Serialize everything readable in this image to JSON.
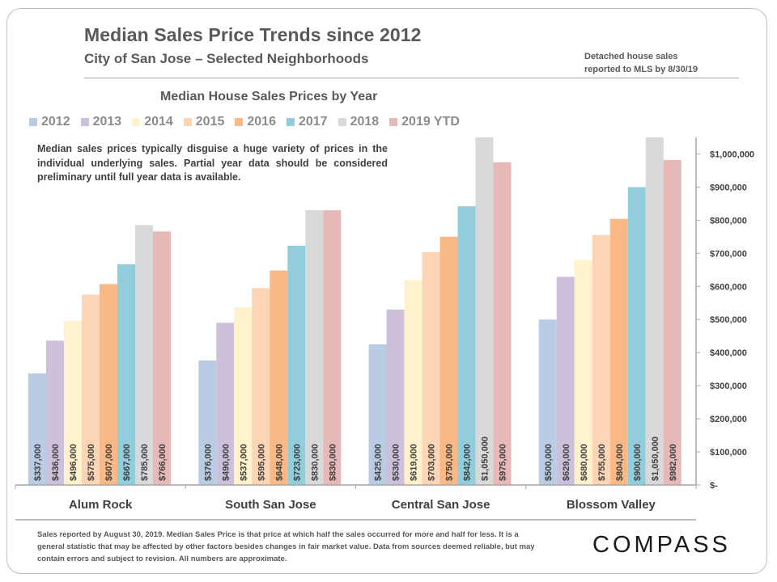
{
  "header": {
    "title": "Median Sales Price Trends since 2012",
    "subtitle": "City of San Jose – Selected Neighborhoods",
    "note_line1": "Detached house sales",
    "note_line2": "reported to MLS by 8/30/19"
  },
  "annotation": "Median sales prices typically disguise a huge variety of prices in the individual underlying sales. Partial year data should be considered preliminary until full year data is available.",
  "footnote": "Sales reported by August 30, 2019. Median Sales Price is that price at which half the sales occurred for more and half for less. It is a general statistic that may be affected by other factors besides changes in fair market value. Data from sources deemed reliable, but may contain errors and subject to revision.  All numbers are approximate.",
  "logo": {
    "text": "COMPASS"
  },
  "colors": {
    "2012": "#b9cce4",
    "2013": "#ccc0da",
    "2014": "#fff2cc",
    "2015": "#fbd5b5",
    "2016": "#f9b886",
    "2017": "#92cddc",
    "2018": "#d9d9d9",
    "2019 YTD": "#e6b9b8"
  },
  "chart_data": {
    "type": "bar",
    "title": "Median House Sales Prices by Year",
    "categories": [
      "Alum Rock",
      "South San Jose",
      "Central San Jose",
      "Blossom Valley"
    ],
    "ylim": [
      0,
      1050000
    ],
    "yticks": [
      "$-",
      "$100,000",
      "$200,000",
      "$300,000",
      "$400,000",
      "$500,000",
      "$600,000",
      "$700,000",
      "$800,000",
      "$900,000",
      "$1,000,000"
    ],
    "legend_position": "top",
    "grid": false,
    "series": [
      {
        "name": "2012",
        "values": [
          337000,
          376000,
          425000,
          500000
        ],
        "labels": [
          "$337,000",
          "$376,000",
          "$425,000",
          "$500,000"
        ]
      },
      {
        "name": "2013",
        "values": [
          436000,
          490000,
          530000,
          629000
        ],
        "labels": [
          "$436,000",
          "$490,000",
          "$530,000",
          "$629,000"
        ]
      },
      {
        "name": "2014",
        "values": [
          496000,
          537000,
          619000,
          680000
        ],
        "labels": [
          "$496,000",
          "$537,000",
          "$619,000",
          "$680,000"
        ]
      },
      {
        "name": "2015",
        "values": [
          575000,
          595000,
          703000,
          755000
        ],
        "labels": [
          "$575,000",
          "$595,000",
          "$703,000",
          "$755,000"
        ]
      },
      {
        "name": "2016",
        "values": [
          607000,
          648000,
          750000,
          804000
        ],
        "labels": [
          "$607,000",
          "$648,000",
          "$750,000",
          "$804,000"
        ]
      },
      {
        "name": "2017",
        "values": [
          667000,
          723000,
          842000,
          900000
        ],
        "labels": [
          "$667,000",
          "$723,000",
          "$842,000",
          "$900,000"
        ]
      },
      {
        "name": "2018",
        "values": [
          785000,
          830000,
          1050000,
          1050000
        ],
        "labels": [
          "$785,000",
          "$830,000",
          "$1,050,000",
          "$1,050,000"
        ]
      },
      {
        "name": "2019 YTD",
        "values": [
          766000,
          830000,
          975000,
          982000
        ],
        "labels": [
          "$766,000",
          "$830,000",
          "$975,000",
          "$982,000"
        ]
      }
    ]
  }
}
